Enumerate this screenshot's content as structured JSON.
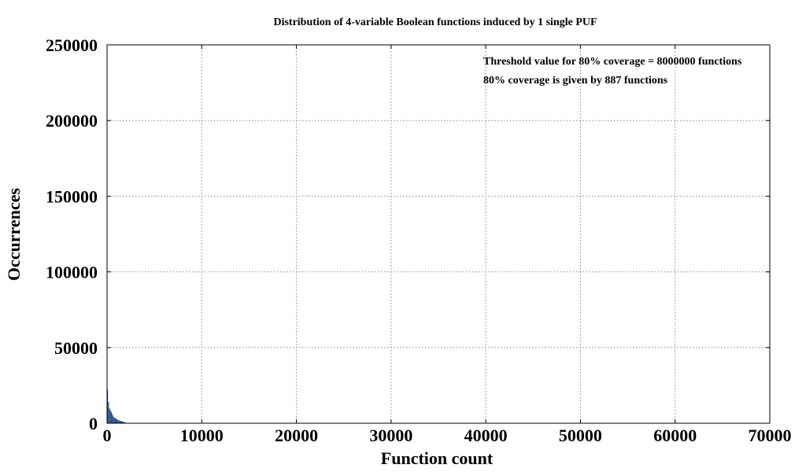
{
  "chart_data": {
    "type": "bar",
    "title": "Distribution of 4-variable Boolean functions induced by 1 single PUF",
    "xlabel": "Function count",
    "ylabel": "Occurrences",
    "xlim": [
      0,
      70000
    ],
    "ylim": [
      0,
      250000
    ],
    "xticks": [
      0,
      10000,
      20000,
      30000,
      40000,
      50000,
      60000,
      70000
    ],
    "yticks": [
      0,
      50000,
      100000,
      150000,
      200000,
      250000
    ],
    "xtick_labels": [
      "0",
      "10000",
      "20000",
      "30000",
      "40000",
      "50000",
      "60000",
      "70000"
    ],
    "ytick_labels": [
      "0",
      "50000",
      "100000",
      "150000",
      "200000",
      "250000"
    ],
    "grid": true,
    "bar_color": "#1f4e8c",
    "annotations": [
      "Threshold value for 80% coverage = 8000000 functions",
      "80% coverage is given by 887 functions"
    ],
    "series": [
      {
        "x": [
          50,
          150,
          250,
          350,
          450,
          550,
          650,
          750,
          850,
          950,
          1050,
          1150,
          1250,
          1350,
          1450,
          1550,
          1650,
          1750,
          1850,
          1950
        ],
        "values": [
          22000,
          14000,
          10000,
          8500,
          7500,
          6000,
          4500,
          3800,
          3400,
          3000,
          2600,
          2200,
          1900,
          1700,
          1500,
          1300,
          1100,
          900,
          700,
          400
        ]
      }
    ]
  }
}
